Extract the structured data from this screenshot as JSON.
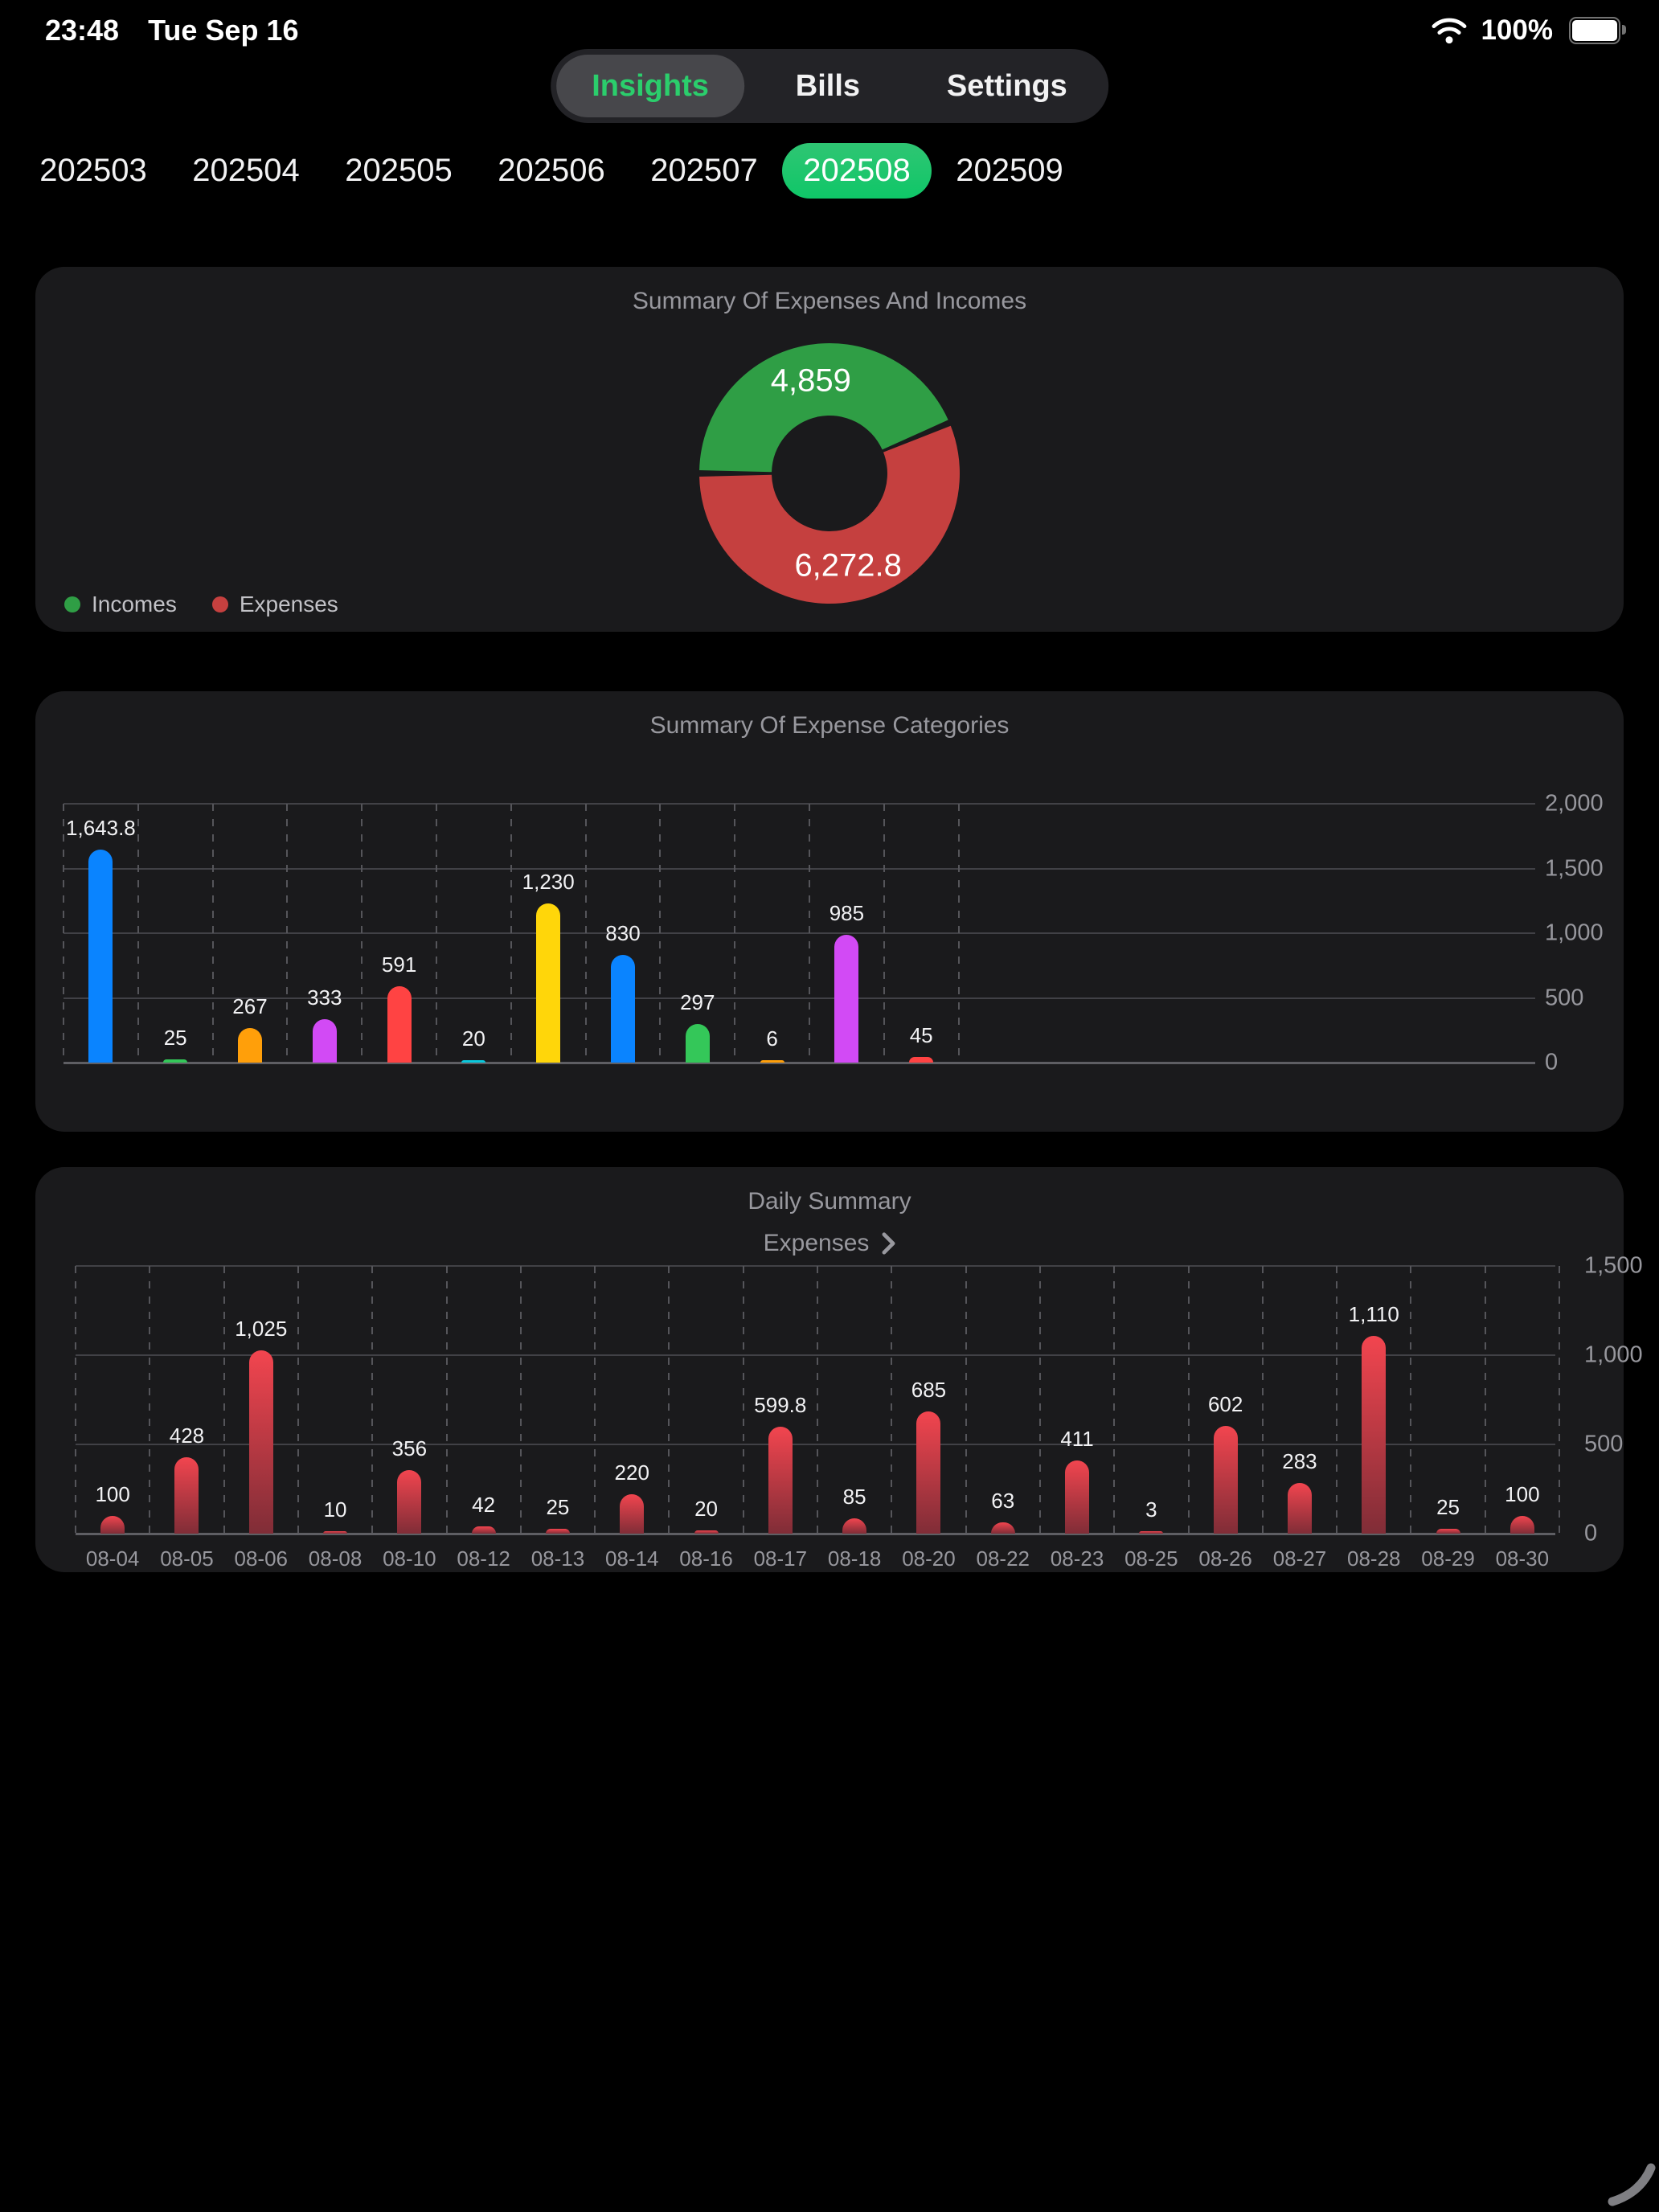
{
  "status_bar": {
    "time": "23:48",
    "date": "Tue Sep 16",
    "battery_percent": "100%"
  },
  "top_tabs": {
    "items": [
      {
        "label": "Insights",
        "selected": true
      },
      {
        "label": "Bills",
        "selected": false
      },
      {
        "label": "Settings",
        "selected": false
      }
    ]
  },
  "month_tabs": {
    "selected": "202508",
    "items": [
      "202503",
      "202504",
      "202505",
      "202506",
      "202507",
      "202508",
      "202509"
    ],
    "selected_color": "#17C86C"
  },
  "cards": {
    "summary": {
      "title": "Summary Of Expenses And Incomes",
      "legend": [
        {
          "label": "Incomes",
          "color": "#2F9E45"
        },
        {
          "label": "Expenses",
          "color": "#C5403F"
        }
      ]
    },
    "categories": {
      "title": "Summary Of Expense Categories"
    },
    "daily": {
      "title": "Daily Summary",
      "subtitle": "Expenses"
    }
  },
  "chart_data": [
    {
      "id": "summary_donut",
      "type": "pie",
      "donut": true,
      "title": "Summary Of Expenses And Incomes",
      "series": [
        {
          "name": "Incomes",
          "value": 4859,
          "label": "4,859",
          "color": "#2F9E45"
        },
        {
          "name": "Expenses",
          "value": 6272.8,
          "label": "6,272.8",
          "color": "#C5403F"
        }
      ],
      "legend_position": "bottom-left"
    },
    {
      "id": "expense_categories",
      "type": "bar",
      "title": "Summary Of Expense Categories",
      "values": [
        1643.8,
        25,
        267,
        333,
        591,
        20,
        1230,
        830,
        297,
        6,
        985,
        45
      ],
      "value_labels": [
        "1,643.8",
        "25",
        "267",
        "333",
        "591",
        "20",
        "1,230",
        "830",
        "297",
        "6",
        "985",
        "45"
      ],
      "bar_colors": [
        "#0A84FF",
        "#34C759",
        "#FF9F0A",
        "#D24AF5",
        "#FF4343",
        "#0AC8DC",
        "#FFD60A",
        "#0A84FF",
        "#34C759",
        "#FF9F0A",
        "#D24AF5",
        "#FF4343"
      ],
      "ylim": [
        0,
        2000
      ],
      "yticks": [
        {
          "value": 0,
          "label": "0"
        },
        {
          "value": 500,
          "label": "500"
        },
        {
          "value": 1000,
          "label": "1,000"
        },
        {
          "value": 1500,
          "label": "1,500"
        },
        {
          "value": 2000,
          "label": "2,000"
        }
      ],
      "grid": true,
      "y_axis_side": "right"
    },
    {
      "id": "daily_summary",
      "type": "bar",
      "title": "Daily Summary",
      "subtitle": "Expenses",
      "categories": [
        "08-04",
        "08-05",
        "08-06",
        "08-08",
        "08-10",
        "08-12",
        "08-13",
        "08-14",
        "08-16",
        "08-17",
        "08-18",
        "08-20",
        "08-22",
        "08-23",
        "08-25",
        "08-26",
        "08-27",
        "08-28",
        "08-29",
        "08-30"
      ],
      "values": [
        100,
        428,
        1025,
        10,
        356,
        42,
        25,
        220,
        20,
        599.8,
        85,
        685,
        63,
        411,
        3,
        602,
        283,
        1110,
        25,
        100
      ],
      "value_labels": [
        "100",
        "428",
        "1,025",
        "10",
        "356",
        "42",
        "25",
        "220",
        "20",
        "599.8",
        "85",
        "685",
        "63",
        "411",
        "3",
        "602",
        "283",
        "1,110",
        "25",
        "100"
      ],
      "bar_gradient": [
        "#F2454F",
        "#802D37"
      ],
      "ylim": [
        0,
        1500
      ],
      "yticks": [
        {
          "value": 0,
          "label": "0"
        },
        {
          "value": 500,
          "label": "500"
        },
        {
          "value": 1000,
          "label": "1,000"
        },
        {
          "value": 1500,
          "label": "1,500"
        }
      ],
      "grid": true,
      "y_axis_side": "right"
    }
  ]
}
